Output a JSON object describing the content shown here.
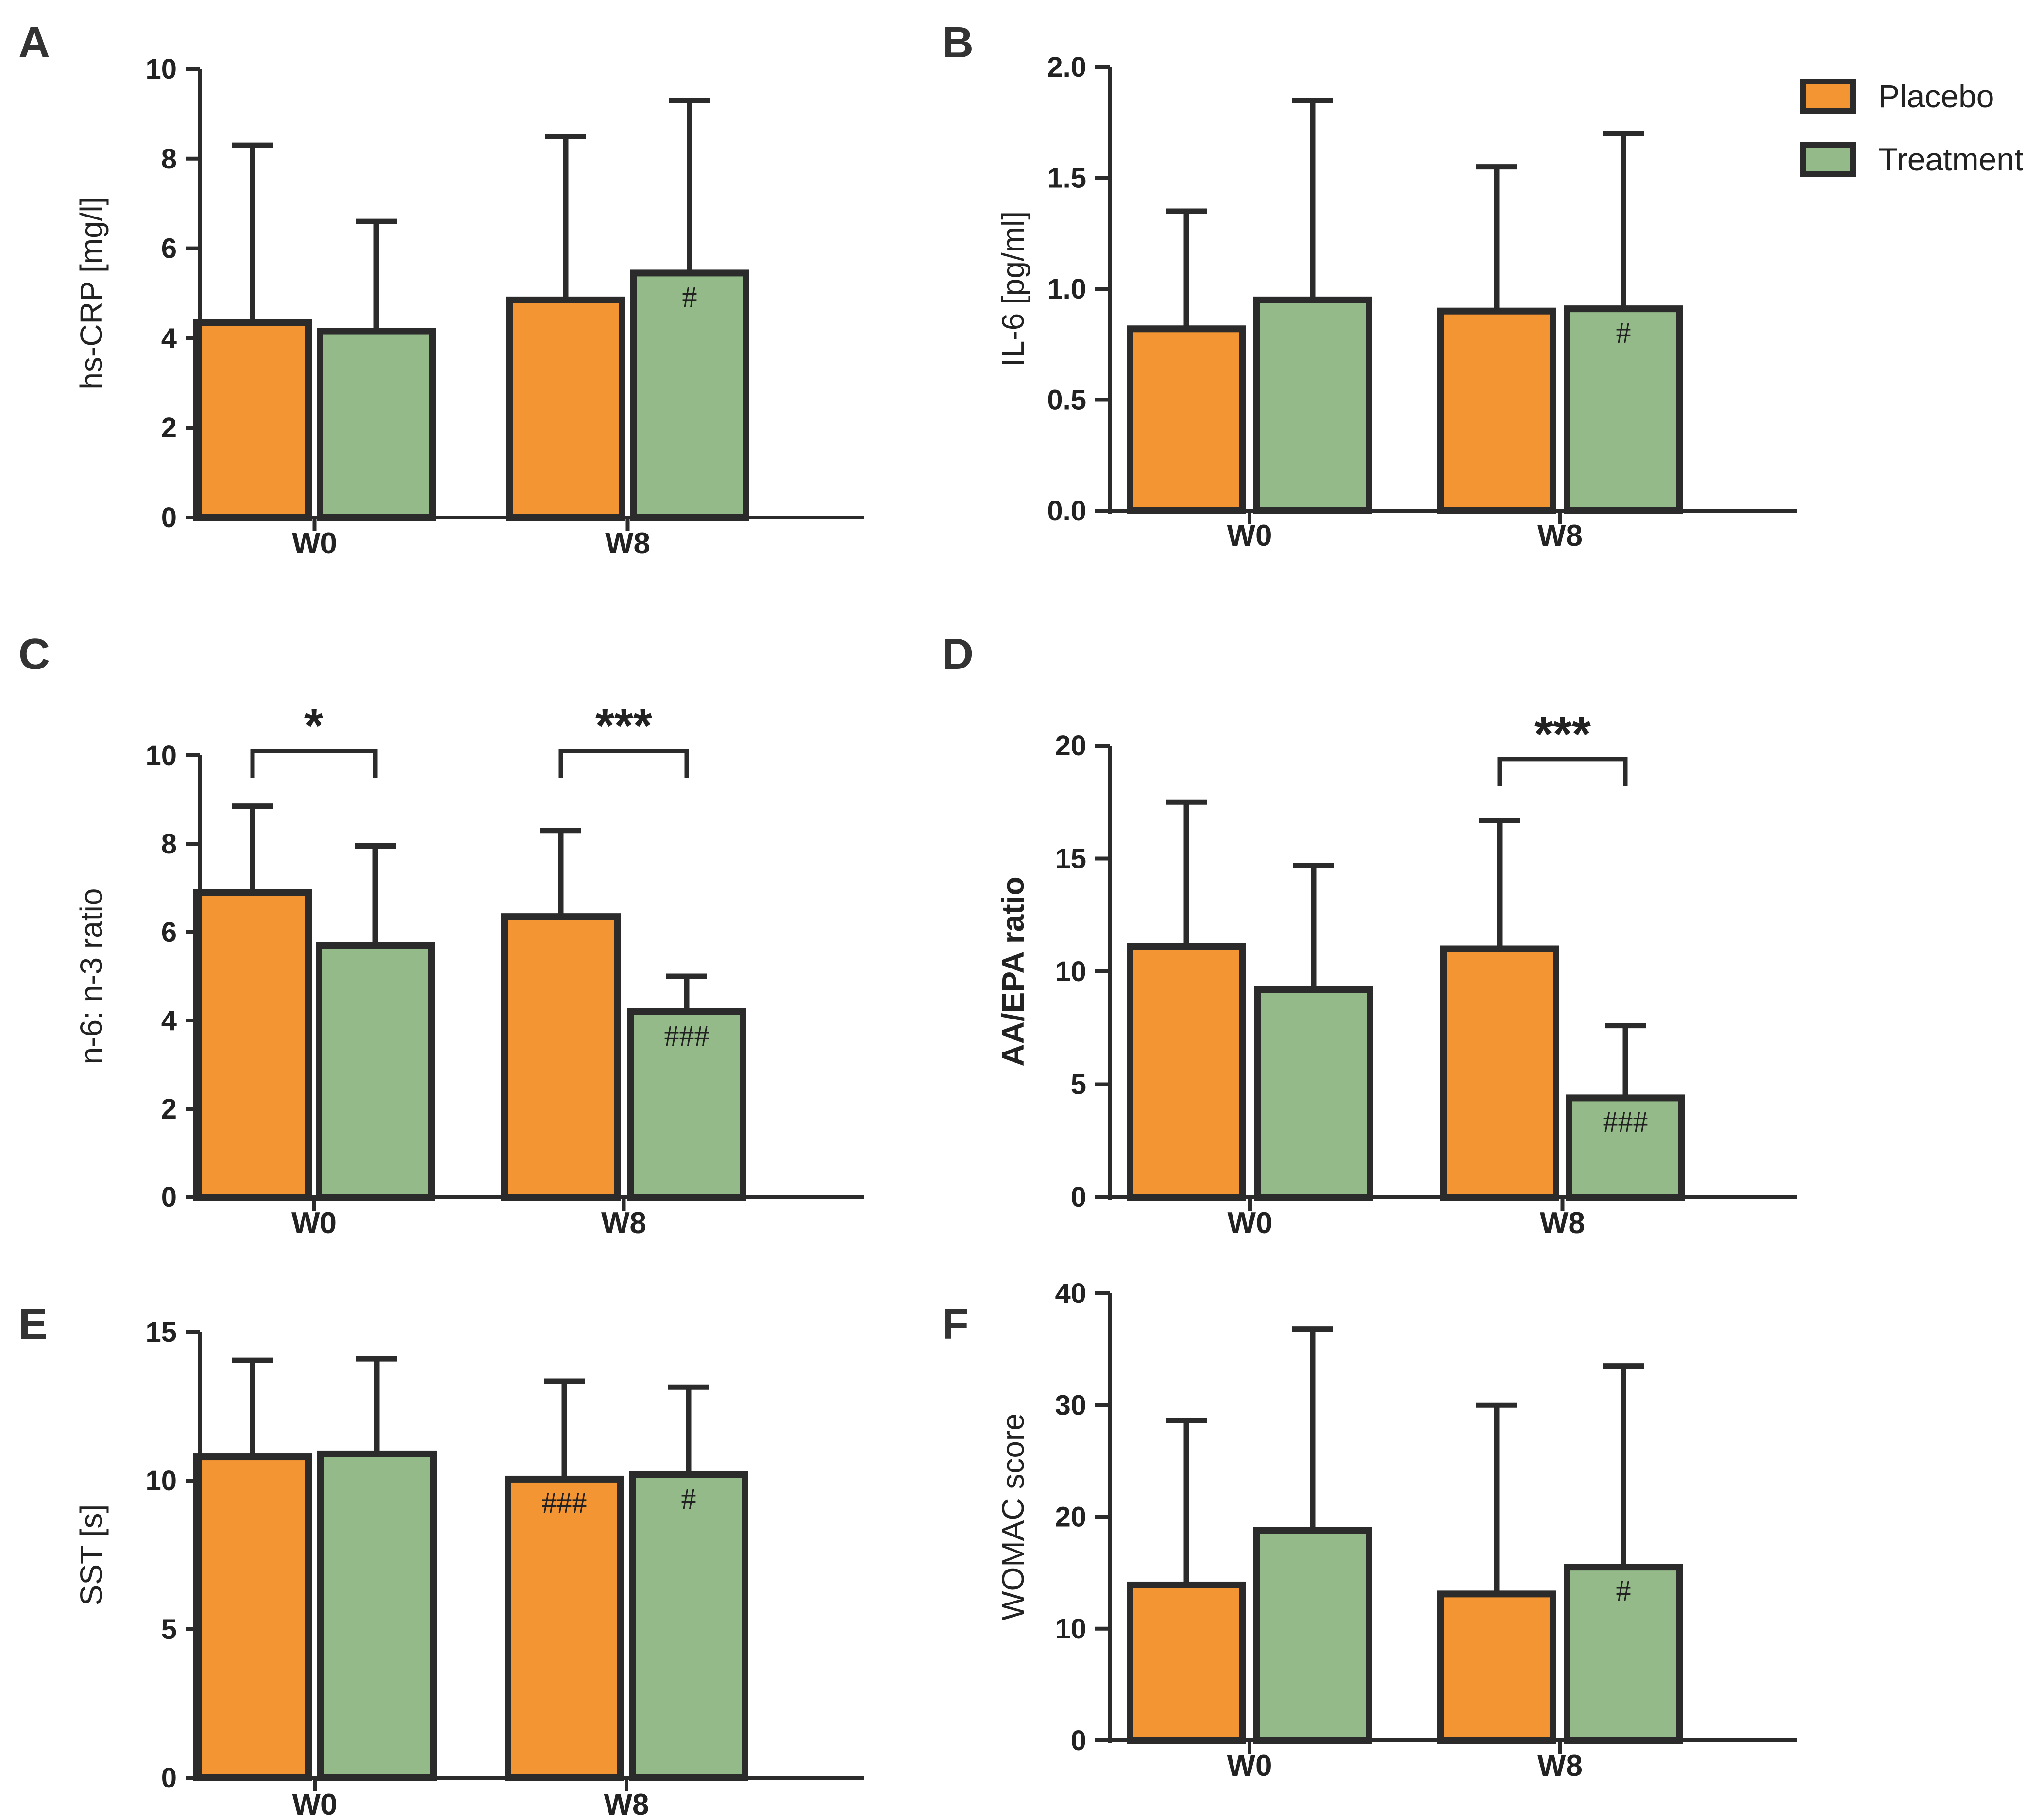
{
  "legend": [
    {
      "name": "Placebo",
      "color": "#F39533"
    },
    {
      "name": "Treatment",
      "color": "#94BA89"
    }
  ],
  "colors": {
    "outline": "#2b2b2b"
  },
  "chart_data": [
    {
      "letter": "A",
      "type": "bar",
      "categories": [
        "W0",
        "W8"
      ],
      "ylabel": "hs-CRP [mg/l]",
      "ylim": [
        0,
        10
      ],
      "yticks": [
        0,
        2,
        4,
        6,
        8,
        10
      ],
      "tick_labels": [
        "0",
        "2",
        "4",
        "6",
        "8",
        "10"
      ],
      "series": [
        {
          "name": "Placebo",
          "values": [
            4.35,
            4.85
          ],
          "err_upper": [
            8.3,
            8.5
          ],
          "marks": [
            "",
            ""
          ]
        },
        {
          "name": "Treatment",
          "values": [
            4.15,
            5.45
          ],
          "err_upper": [
            6.6,
            9.3
          ],
          "marks": [
            "",
            "#"
          ]
        }
      ],
      "brackets": []
    },
    {
      "letter": "B",
      "type": "bar",
      "categories": [
        "W0",
        "W8"
      ],
      "ylabel": "IL-6 [pg/ml]",
      "ylim": [
        0,
        2
      ],
      "yticks": [
        0,
        0.5,
        1,
        1.5,
        2
      ],
      "tick_labels": [
        "0.0",
        "0.5",
        "1.0",
        "1.5",
        "2.0"
      ],
      "series": [
        {
          "name": "Placebo",
          "values": [
            0.82,
            0.9
          ],
          "err_upper": [
            1.35,
            1.55
          ],
          "marks": [
            "",
            ""
          ]
        },
        {
          "name": "Treatment",
          "values": [
            0.95,
            0.91
          ],
          "err_upper": [
            1.85,
            1.7
          ],
          "marks": [
            "",
            "#"
          ]
        }
      ],
      "brackets": []
    },
    {
      "letter": "C",
      "type": "bar",
      "categories": [
        "W0",
        "W8"
      ],
      "ylabel": "n-6: n-3 ratio",
      "ylim": [
        0,
        10
      ],
      "yticks": [
        0,
        2,
        4,
        6,
        8,
        10
      ],
      "tick_labels": [
        "0",
        "2",
        "4",
        "6",
        "8",
        "10"
      ],
      "series": [
        {
          "name": "Placebo",
          "values": [
            6.9,
            6.35
          ],
          "err_upper": [
            8.85,
            8.3
          ],
          "marks": [
            "",
            ""
          ]
        },
        {
          "name": "Treatment",
          "values": [
            5.7,
            4.2
          ],
          "err_upper": [
            7.95,
            5.0
          ],
          "marks": [
            "",
            "###"
          ]
        }
      ],
      "brackets": [
        {
          "group": 0,
          "level": 10.1,
          "label": "*"
        },
        {
          "group": 1,
          "level": 10.1,
          "label": "***"
        }
      ]
    },
    {
      "letter": "D",
      "type": "bar",
      "categories": [
        "W0",
        "W8"
      ],
      "ylabel": "AA/EPA ratio",
      "ylabel_bold": true,
      "ylim": [
        0,
        20
      ],
      "yticks": [
        0,
        5,
        10,
        15,
        20
      ],
      "tick_labels": [
        "0",
        "5",
        "10",
        "15",
        "20"
      ],
      "series": [
        {
          "name": "Placebo",
          "values": [
            11.1,
            11.0
          ],
          "err_upper": [
            17.5,
            16.7
          ],
          "marks": [
            "",
            ""
          ]
        },
        {
          "name": "Treatment",
          "values": [
            9.2,
            4.4
          ],
          "err_upper": [
            14.7,
            7.6
          ],
          "marks": [
            "",
            "###"
          ]
        }
      ],
      "brackets": [
        {
          "group": 1,
          "level": 19.4,
          "label": "***"
        }
      ]
    },
    {
      "letter": "E",
      "type": "bar",
      "categories": [
        "W0",
        "W8"
      ],
      "ylabel": "SST [s]",
      "ylim": [
        0,
        15
      ],
      "yticks": [
        0,
        5,
        10,
        15
      ],
      "tick_labels": [
        "0",
        "5",
        "10",
        "15"
      ],
      "series": [
        {
          "name": "Placebo",
          "values": [
            10.8,
            10.05
          ],
          "err_upper": [
            14.05,
            13.35
          ],
          "marks": [
            "",
            "###"
          ]
        },
        {
          "name": "Treatment",
          "values": [
            10.9,
            10.2
          ],
          "err_upper": [
            14.1,
            13.15
          ],
          "marks": [
            "",
            "#"
          ]
        }
      ],
      "brackets": []
    },
    {
      "letter": "F",
      "type": "bar",
      "categories": [
        "W0",
        "W8"
      ],
      "ylabel": "WOMAC score",
      "ylim": [
        0,
        40
      ],
      "yticks": [
        0,
        10,
        20,
        30,
        40
      ],
      "tick_labels": [
        "0",
        "10",
        "20",
        "30",
        "40"
      ],
      "series": [
        {
          "name": "Placebo",
          "values": [
            13.9,
            13.1
          ],
          "err_upper": [
            28.6,
            30.0
          ],
          "marks": [
            "",
            ""
          ]
        },
        {
          "name": "Treatment",
          "values": [
            18.8,
            15.5
          ],
          "err_upper": [
            36.8,
            33.5
          ],
          "marks": [
            "",
            "#"
          ]
        }
      ],
      "brackets": []
    }
  ]
}
